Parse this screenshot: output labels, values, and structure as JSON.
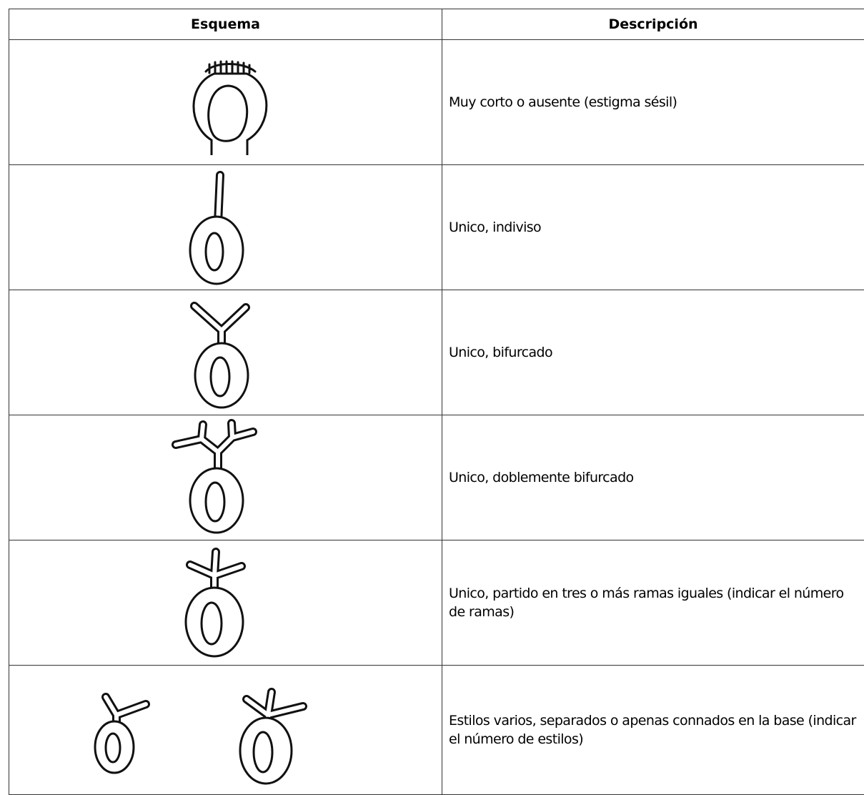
{
  "table": {
    "header": [
      "Esquema",
      "Descripción"
    ],
    "rows": [
      [
        "Muy corto o ausente (estigma sésil)"
      ],
      [
        "Unico, indiviso"
      ],
      [
        "Unico, bifurcado"
      ],
      [
        "Unico, doblemente bifurcado"
      ],
      [
        "Unico, partido en tres o más ramas iguales  (indicar el número de ramas)"
      ],
      [
        "Estilos varios, separados o apenas connados en la base (indicar el número de estilos)"
      ]
    ]
  }
}
